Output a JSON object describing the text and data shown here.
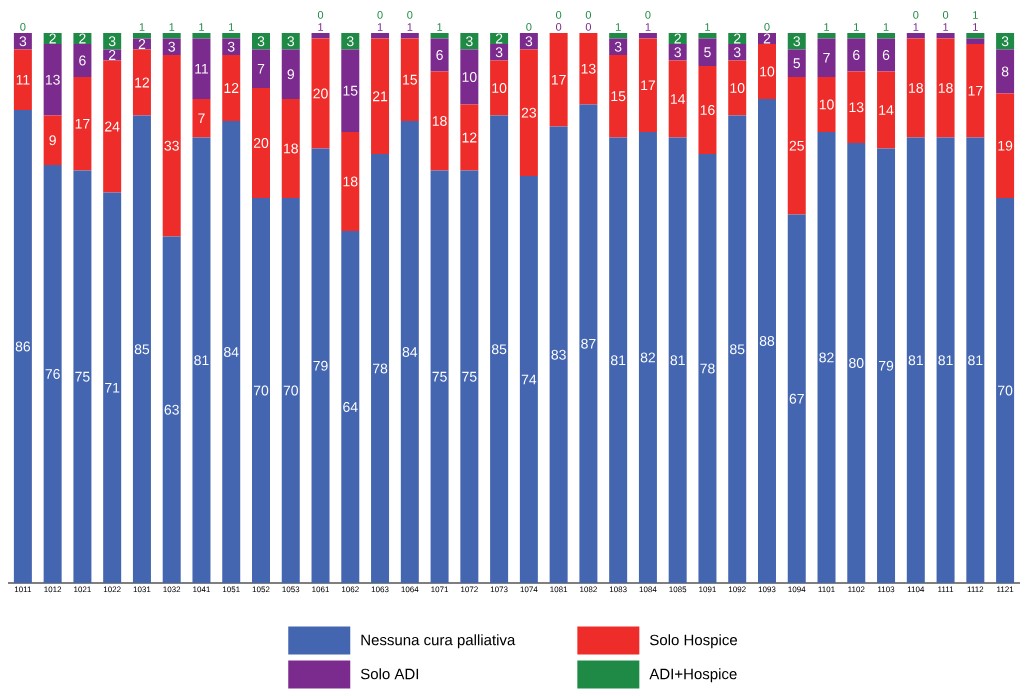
{
  "chart_data": {
    "type": "bar",
    "stacked": true,
    "data_labels": true,
    "legend": "bottom",
    "grid": false,
    "tick_labels": "x",
    "categories": [
      "1011",
      "1012",
      "1021",
      "1022",
      "1031",
      "1032",
      "1041",
      "1051",
      "1052",
      "1053",
      "1061",
      "1062",
      "1063",
      "1064",
      "1071",
      "1072",
      "1073",
      "1074",
      "1081",
      "1082",
      "1083",
      "1084",
      "1085",
      "1091",
      "1092",
      "1093",
      "1094",
      "1101",
      "1102",
      "1103",
      "1104",
      "1111",
      "1112",
      "1121"
    ],
    "series": [
      {
        "name": "Nessuna cura palliativa",
        "color": "#4466b0",
        "values": [
          86,
          76,
          75,
          71,
          85,
          63,
          81,
          84,
          70,
          70,
          79,
          64,
          78,
          84,
          75,
          75,
          85,
          74,
          83,
          87,
          81,
          82,
          81,
          78,
          85,
          88,
          67,
          82,
          80,
          79,
          81,
          81,
          81,
          70
        ]
      },
      {
        "name": "Solo Hospice",
        "color": "#ee2d2a",
        "values": [
          11,
          9,
          17,
          24,
          12,
          33,
          7,
          12,
          20,
          18,
          20,
          18,
          21,
          15,
          18,
          12,
          10,
          23,
          17,
          13,
          15,
          17,
          14,
          16,
          10,
          10,
          25,
          10,
          13,
          14,
          18,
          18,
          17,
          19
        ]
      },
      {
        "name": "Solo ADI",
        "color": "#7b2a8e",
        "values": [
          3,
          13,
          6,
          2,
          2,
          3,
          11,
          3,
          7,
          9,
          1,
          15,
          1,
          1,
          6,
          10,
          3,
          3,
          0,
          0,
          3,
          1,
          3,
          5,
          3,
          2,
          5,
          7,
          6,
          6,
          1,
          1,
          1,
          8
        ]
      },
      {
        "name": "ADI+Hospice",
        "color": "#1e8a45",
        "values": [
          0,
          2,
          2,
          3,
          1,
          1,
          1,
          1,
          3,
          3,
          0,
          3,
          0,
          0,
          1,
          3,
          2,
          0,
          0,
          0,
          1,
          0,
          2,
          1,
          2,
          0,
          3,
          1,
          1,
          1,
          0,
          0,
          1,
          3
        ]
      }
    ]
  }
}
